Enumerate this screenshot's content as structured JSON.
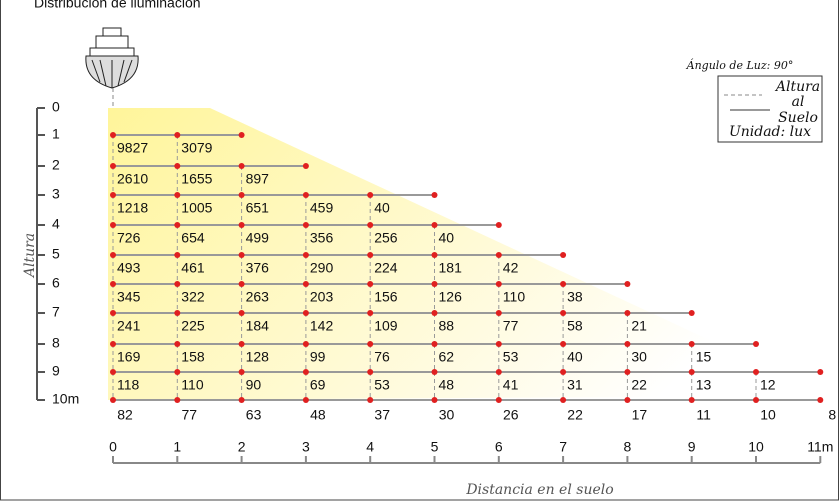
{
  "title": "Distribución de iluminación",
  "legend": {
    "angle": "Ángulo de Luz:  90°",
    "height_lines": [
      "Altura",
      "al",
      "Suelo"
    ],
    "unit": "Unidad: lux"
  },
  "y_axis": {
    "title": "Altura",
    "labels": [
      "0",
      "1",
      "2",
      "3",
      "4",
      "5",
      "6",
      "7",
      "8",
      "9",
      "10m"
    ]
  },
  "x_axis": {
    "title": "Distancia en el suelo",
    "labels": [
      "0",
      "1",
      "2",
      "3",
      "4",
      "5",
      "6",
      "7",
      "8",
      "9",
      "10",
      "11m"
    ]
  },
  "rows": [
    [
      "9827",
      "3079"
    ],
    [
      "2610",
      "1655",
      "897"
    ],
    [
      "1218",
      "1005",
      "651",
      "459",
      "40"
    ],
    [
      "726",
      "654",
      "499",
      "356",
      "256",
      "40"
    ],
    [
      "493",
      "461",
      "376",
      "290",
      "224",
      "181",
      "42"
    ],
    [
      "345",
      "322",
      "263",
      "203",
      "156",
      "126",
      "110",
      "38"
    ],
    [
      "241",
      "225",
      "184",
      "142",
      "109",
      "88",
      "77",
      "58",
      "21"
    ],
    [
      "169",
      "158",
      "128",
      "99",
      "76",
      "62",
      "53",
      "40",
      "30",
      "15"
    ],
    [
      "118",
      "110",
      "90",
      "69",
      "53",
      "48",
      "41",
      "31",
      "22",
      "13",
      "12"
    ],
    [
      "82",
      "77",
      "63",
      "48",
      "37",
      "30",
      "26",
      "22",
      "17",
      "11",
      "10",
      "8"
    ]
  ]
}
